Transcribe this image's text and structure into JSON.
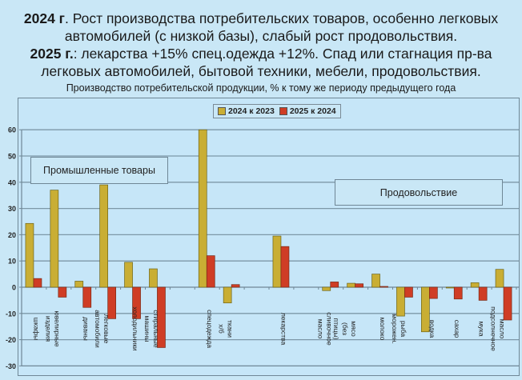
{
  "header": {
    "line1_bold": "2024 г",
    "line1_rest": ". Рост производства потребительских товаров, особенно легковых",
    "line2": "автомобилей (с низкой базы), слабый рост продовольствия.",
    "line3_bold": "2025 г.",
    "line3_rest": ": лекарства +15% спец.одежда +12%. Спад или стагнация пр-ва",
    "line4": "легковых автомобилей, бытовой техники, мебели, продовольствия.",
    "subtitle": "Производство потребительской продукции, % к тому же периоду предыдущего года"
  },
  "annotations": {
    "industrial": "Промышленные товары",
    "food": "Продовольствие"
  },
  "colors": {
    "series_2024": "#c9ae34",
    "series_2025": "#cf3d25",
    "background": "#c9e7f6",
    "grid": "#7d98a8"
  },
  "chart_data": {
    "type": "bar",
    "title": "Производство потребительской продукции, % к тому же периоду предыдущего года",
    "xlabel": "",
    "ylabel": "",
    "ylim": [
      -30,
      60
    ],
    "yticks": [
      60,
      50,
      40,
      30,
      20,
      10,
      0,
      -10,
      -20,
      -30
    ],
    "grid": true,
    "legend_position": "top",
    "categories": [
      "шкафы",
      "ювелирные изделия",
      "диваны",
      "легковые автомобили",
      "холодильники",
      "стиральные машины",
      "спецодежда",
      "ткани х/б",
      "лекарства",
      "сливочное масло",
      "мясо (без птицы)",
      "молоко",
      "рыба морожен.",
      "водка",
      "сахар",
      "мука",
      "масло подсолнечное"
    ],
    "slots": [
      0,
      1,
      2,
      3,
      4,
      5,
      7,
      8,
      10,
      12,
      13,
      14,
      15,
      16,
      17,
      18,
      19
    ],
    "series": [
      {
        "name": "2024 к 2023",
        "values": [
          24.3,
          37,
          2.3,
          39,
          9.5,
          7,
          60,
          -6,
          19.5,
          -1.3,
          1.5,
          5,
          -11,
          -17,
          -0.3,
          1.7,
          6.8
        ]
      },
      {
        "name": "2025 к 2024",
        "values": [
          3.3,
          -3.8,
          -7.7,
          -12,
          -12,
          -23,
          12,
          1,
          15.5,
          2,
          1.3,
          0.3,
          -3.8,
          -4.3,
          -4.5,
          -5,
          -12.5
        ]
      }
    ]
  }
}
